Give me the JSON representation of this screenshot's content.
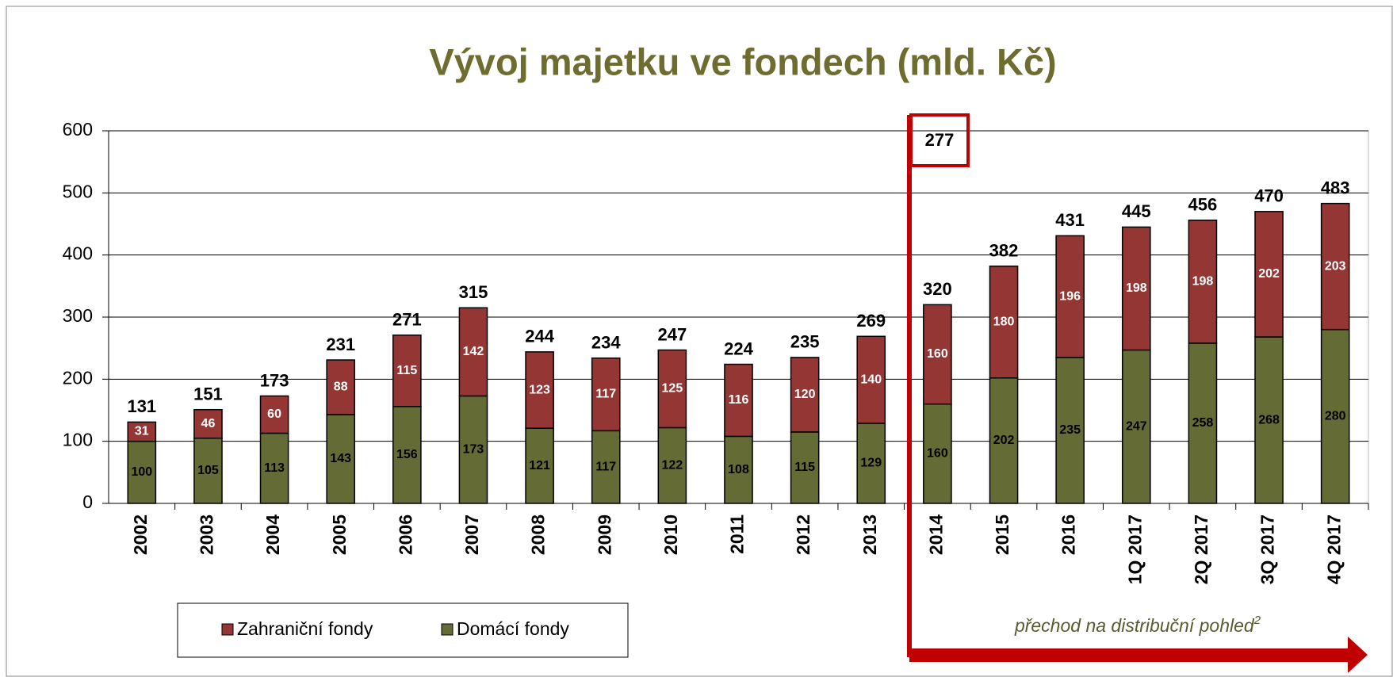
{
  "chart_data": {
    "type": "stacked_bar",
    "title": "Vývoj majetku ve fondech (mld. Kč)",
    "categories": [
      "2002",
      "2003",
      "2004",
      "2005",
      "2006",
      "2007",
      "2008",
      "2009",
      "2010",
      "2011",
      "2012",
      "2013",
      "2014",
      "2015",
      "2016",
      "1Q 2017",
      "2Q 2017",
      "3Q 2017",
      "4Q 2017"
    ],
    "series": [
      {
        "name": "Domácí fondy",
        "color": "#656b34",
        "values": [
          100,
          105,
          113,
          143,
          156,
          173,
          121,
          117,
          122,
          108,
          115,
          129,
          160,
          202,
          235,
          247,
          258,
          268,
          280
        ]
      },
      {
        "name": "Zahraniční fondy",
        "color": "#943634",
        "values": [
          31,
          46,
          60,
          88,
          115,
          142,
          123,
          117,
          125,
          116,
          120,
          140,
          160,
          180,
          196,
          198,
          198,
          202,
          203
        ]
      }
    ],
    "totals": [
      131,
      151,
      173,
      231,
      271,
      315,
      244,
      234,
      247,
      224,
      235,
      269,
      320,
      382,
      431,
      445,
      456,
      470,
      483
    ],
    "ylim": [
      0,
      600
    ],
    "yticks": [
      0,
      100,
      200,
      300,
      400,
      500,
      600
    ],
    "grid": true,
    "annotations": {
      "boxed_value": "277",
      "transition_note": "přechod na distribuční pohled",
      "transition_note_superscript": "2"
    }
  }
}
